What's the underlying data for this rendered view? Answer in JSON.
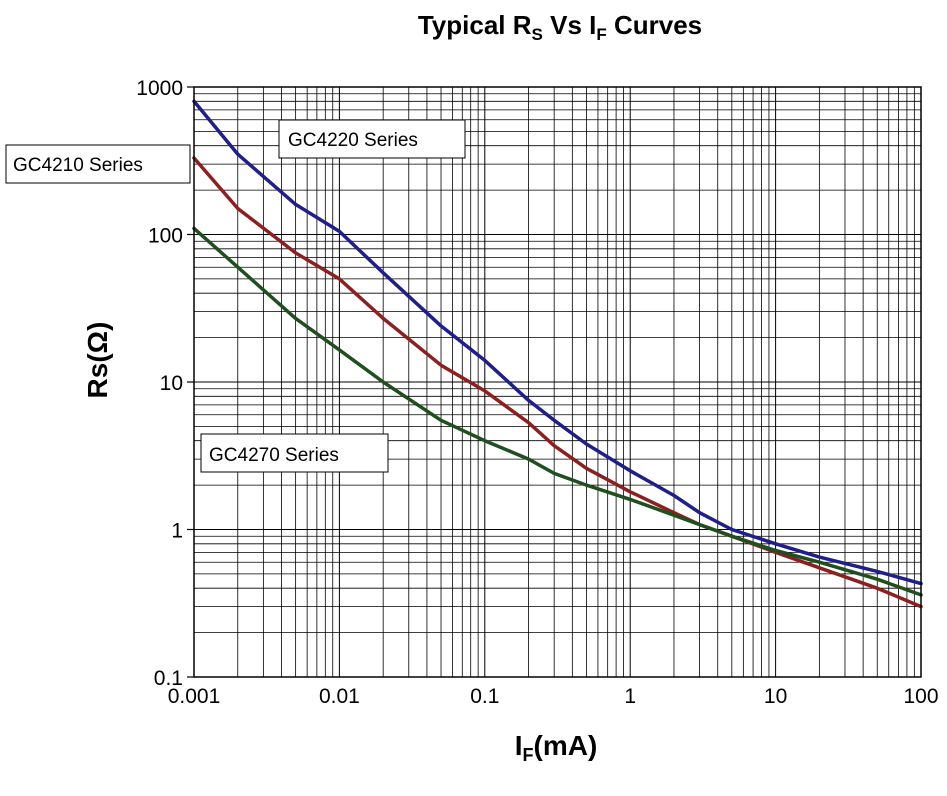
{
  "chart_data": {
    "type": "line",
    "title_parts": {
      "prefix": "Typical R",
      "sub1": "S",
      "middle": " Vs I",
      "sub2": "F",
      "suffix": " Curves"
    },
    "xlabel_parts": {
      "main": "I",
      "sub": "F",
      "unit": "(mA)"
    },
    "ylabel": "Rs(Ω)",
    "x_scale": "log",
    "y_scale": "log",
    "xlim": [
      0.001,
      100
    ],
    "ylim": [
      0.1,
      1000
    ],
    "x_ticks": [
      "0.001",
      "0.01",
      "0.1",
      "1",
      "10",
      "100"
    ],
    "y_ticks": [
      "0.1",
      "1",
      "10",
      "100",
      "1000"
    ],
    "grid": true,
    "series": [
      {
        "name": "GC4220 Series",
        "color": "#1f1f8c",
        "x": [
          0.001,
          0.002,
          0.005,
          0.01,
          0.02,
          0.05,
          0.1,
          0.2,
          0.3,
          0.5,
          1,
          2,
          3,
          5,
          10,
          20,
          50,
          100
        ],
        "y": [
          800,
          350,
          160,
          105,
          55,
          24,
          14,
          7.5,
          5.5,
          3.8,
          2.5,
          1.7,
          1.3,
          1.0,
          0.8,
          0.65,
          0.52,
          0.43
        ]
      },
      {
        "name": "GC4210 Series",
        "color": "#8c1f1f",
        "x": [
          0.001,
          0.002,
          0.005,
          0.01,
          0.02,
          0.05,
          0.1,
          0.2,
          0.3,
          0.5,
          1,
          2,
          3,
          5,
          10,
          20,
          50,
          100
        ],
        "y": [
          330,
          150,
          75,
          50,
          27,
          13,
          8.7,
          5.3,
          3.7,
          2.6,
          1.8,
          1.3,
          1.08,
          0.9,
          0.7,
          0.55,
          0.4,
          0.3
        ]
      },
      {
        "name": "GC4270 Series",
        "color": "#1f4f1f",
        "x": [
          0.001,
          0.002,
          0.005,
          0.01,
          0.02,
          0.05,
          0.1,
          0.2,
          0.3,
          0.5,
          1,
          2,
          3,
          5,
          10,
          20,
          50,
          100
        ],
        "y": [
          110,
          60,
          27,
          16.5,
          10,
          5.5,
          4.0,
          3.0,
          2.4,
          2.0,
          1.6,
          1.25,
          1.08,
          0.9,
          0.72,
          0.6,
          0.46,
          0.36
        ]
      }
    ]
  }
}
